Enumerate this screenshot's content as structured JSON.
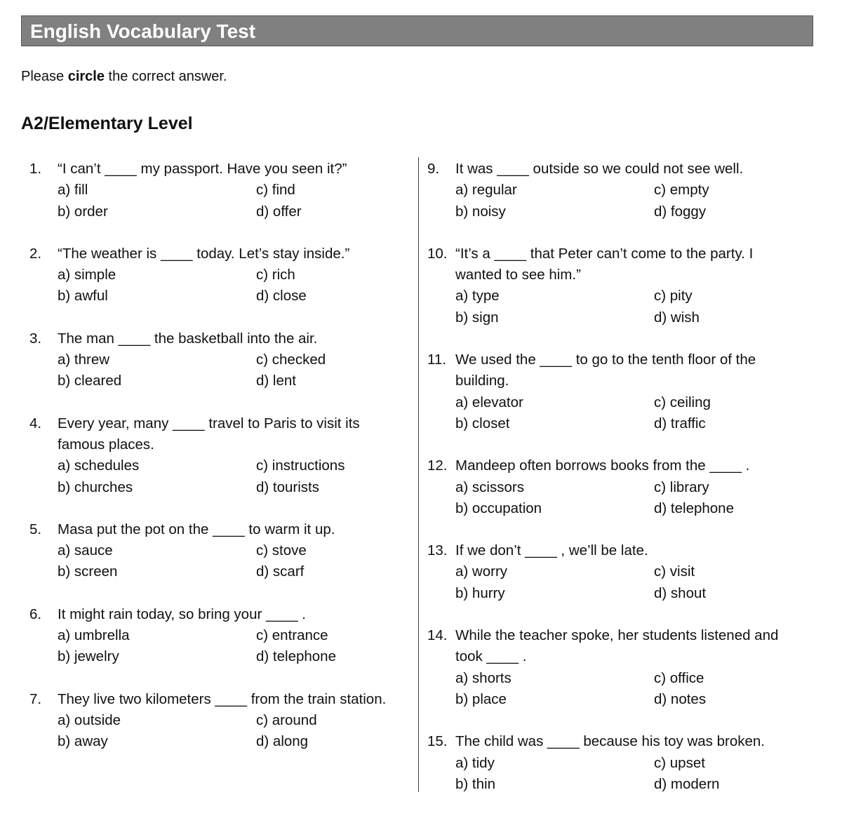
{
  "header": {
    "title": "English Vocabulary Test"
  },
  "instructions": [
    "Please ",
    "circle",
    " the correct answer."
  ],
  "level": "A2/Elementary Level",
  "columns": [
    {
      "questions": [
        {
          "number": "1.",
          "stem": "“I can’t ____ my passport. Have you seen it?”",
          "options": [
            "a) fill",
            "b) order",
            "c) find",
            "d) offer"
          ]
        },
        {
          "number": "2.",
          "stem": "“The weather is ____ today. Let’s stay inside.”",
          "options": [
            "a) simple",
            "b) awful",
            "c) rich",
            "d) close"
          ]
        },
        {
          "number": "3.",
          "stem": "The man ____ the basketball into the air.",
          "options": [
            "a) threw",
            "b) cleared",
            "c) checked",
            "d) lent"
          ]
        },
        {
          "number": "4.",
          "stem": "Every year, many ____ travel to Paris to visit its famous places.",
          "options": [
            "a) schedules",
            "b) churches",
            "c) instructions",
            "d) tourists"
          ]
        },
        {
          "number": "5.",
          "stem": "Masa put the pot on the ____ to warm it up.",
          "options": [
            "a) sauce",
            "b) screen",
            "c) stove",
            "d) scarf"
          ]
        },
        {
          "number": "6.",
          "stem": "It might rain today, so bring your ____ .",
          "options": [
            "a) umbrella",
            "b) jewelry",
            "c) entrance",
            "d) telephone"
          ]
        },
        {
          "number": "7.",
          "stem": "They live two kilometers ____ from the train station.",
          "options": [
            "a) outside",
            "b) away",
            "c) around",
            "d) along"
          ]
        }
      ]
    },
    {
      "questions": [
        {
          "number": "9.",
          "stem": "It was ____ outside so we could not see well.",
          "options": [
            "a) regular",
            "b) noisy",
            "c) empty",
            "d) foggy"
          ]
        },
        {
          "number": "10.",
          "stem": "“It’s a ____ that Peter can’t come to the party. I wanted to see him.”",
          "options": [
            "a) type",
            "b) sign",
            "c) pity",
            "d) wish"
          ]
        },
        {
          "number": "11.",
          "stem": "We used the ____ to go to the tenth floor of the building.",
          "options": [
            "a) elevator",
            "b) closet",
            "c) ceiling",
            "d) traffic"
          ]
        },
        {
          "number": "12.",
          "stem": "Mandeep often borrows books from the ____ .",
          "options": [
            "a) scissors",
            "b) occupation",
            "c) library",
            "d) telephone"
          ]
        },
        {
          "number": "13.",
          "stem": "If we don’t ____ , we’ll be late.",
          "options": [
            "a) worry",
            "b) hurry",
            "c) visit",
            "d) shout"
          ]
        },
        {
          "number": "14.",
          "stem": "While the teacher spoke, her students listened and took ____ .",
          "options": [
            "a) shorts",
            "b) place",
            "c) office",
            "d) notes"
          ]
        },
        {
          "number": "15.",
          "stem": "The child was ____ because his toy was broken.",
          "options": [
            "a) tidy",
            "b) thin",
            "c) upset",
            "d) modern"
          ]
        }
      ]
    }
  ]
}
